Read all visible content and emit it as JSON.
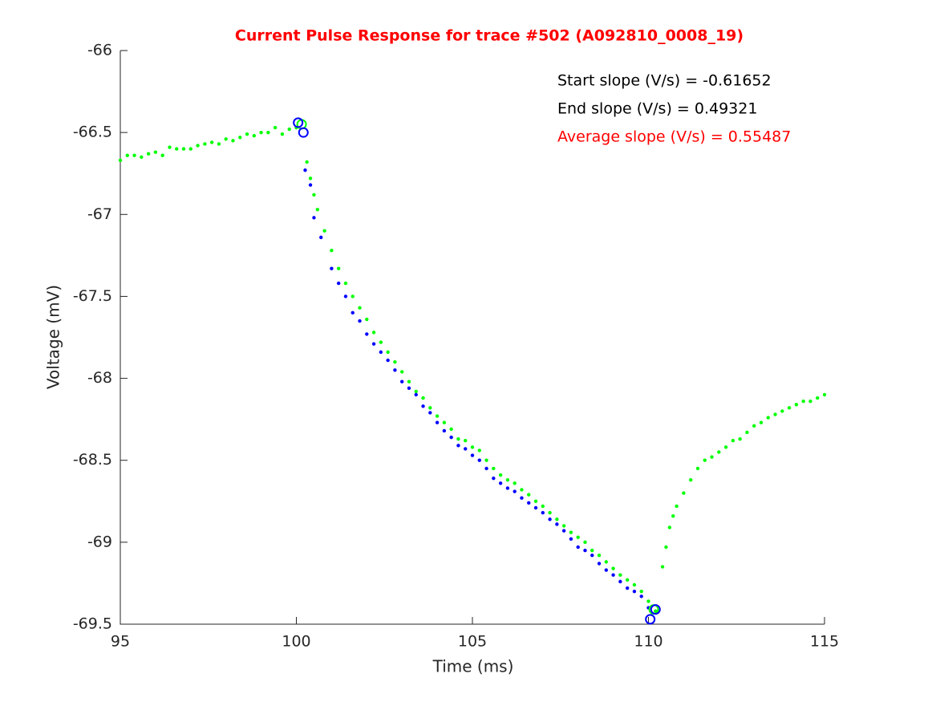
{
  "chart_data": {
    "type": "scatter",
    "title": "Current Pulse Response for trace #502 (A092810_0008_19)",
    "title_color": "#ff0000",
    "xlabel": "Time (ms)",
    "ylabel": "Voltage (mV)",
    "xlim": [
      95,
      115
    ],
    "xticks": [
      95,
      100,
      105,
      110,
      115
    ],
    "ylim": [
      -69.5,
      -66
    ],
    "yticks": [
      -66,
      -66.5,
      -67,
      -67.5,
      -68,
      -68.5,
      -69,
      -69.5
    ],
    "annotations": [
      {
        "text": "Start slope (V/s) = -0.61652",
        "color": "#000000"
      },
      {
        "text": "End slope (V/s) = 0.49321",
        "color": "#000000"
      },
      {
        "text": "Average slope (V/s) = 0.55487",
        "color": "#ff0000"
      }
    ],
    "series": [
      {
        "color": "#00ff00",
        "marker": "dot",
        "x": [
          95.0,
          95.2,
          95.4,
          95.6,
          95.8,
          96.0,
          96.2,
          96.4,
          96.6,
          96.8,
          97.0,
          97.2,
          97.4,
          97.6,
          97.8,
          98.0,
          98.2,
          98.4,
          98.6,
          98.8,
          99.0,
          99.2,
          99.4,
          99.6,
          99.8,
          100.0,
          100.3,
          100.4,
          100.5,
          100.6,
          100.8,
          101.0,
          101.2,
          101.4,
          101.6,
          101.8,
          102.0,
          102.2,
          102.4,
          102.6,
          102.8,
          103.0,
          103.2,
          103.4,
          103.6,
          103.8,
          104.0,
          104.2,
          104.4,
          104.6,
          104.8,
          105.0,
          105.2,
          105.4,
          105.6,
          105.8,
          106.0,
          106.2,
          106.4,
          106.6,
          106.8,
          107.0,
          107.2,
          107.4,
          107.6,
          107.8,
          108.0,
          108.2,
          108.4,
          108.6,
          108.8,
          109.0,
          109.2,
          109.4,
          109.6,
          109.8,
          110.0,
          110.2,
          110.4,
          110.5,
          110.6,
          110.7,
          110.8,
          111.0,
          111.2,
          111.4,
          111.6,
          111.8,
          112.0,
          112.2,
          112.4,
          112.6,
          112.8,
          113.0,
          113.2,
          113.4,
          113.6,
          113.8,
          114.0,
          114.2,
          114.4,
          114.6,
          114.8,
          115.0
        ],
        "values": [
          -66.67,
          -66.64,
          -66.64,
          -66.65,
          -66.63,
          -66.62,
          -66.64,
          -66.59,
          -66.6,
          -66.6,
          -66.6,
          -66.58,
          -66.57,
          -66.56,
          -66.57,
          -66.54,
          -66.55,
          -66.53,
          -66.51,
          -66.52,
          -66.5,
          -66.5,
          -66.47,
          -66.51,
          -66.48,
          -66.47,
          -66.68,
          -66.78,
          -66.88,
          -66.97,
          -67.1,
          -67.22,
          -67.33,
          -67.42,
          -67.5,
          -67.57,
          -67.64,
          -67.72,
          -67.78,
          -67.84,
          -67.9,
          -67.96,
          -68.02,
          -68.08,
          -68.12,
          -68.18,
          -68.23,
          -68.27,
          -68.31,
          -68.37,
          -68.38,
          -68.42,
          -68.44,
          -68.5,
          -68.55,
          -68.59,
          -68.62,
          -68.64,
          -68.68,
          -68.71,
          -68.75,
          -68.78,
          -68.82,
          -68.86,
          -68.9,
          -68.94,
          -68.97,
          -69.0,
          -69.05,
          -69.08,
          -69.12,
          -69.16,
          -69.2,
          -69.23,
          -69.26,
          -69.3,
          -69.36,
          -69.42,
          -69.15,
          -69.03,
          -68.91,
          -68.84,
          -68.78,
          -68.7,
          -68.62,
          -68.55,
          -68.5,
          -68.48,
          -68.45,
          -68.42,
          -68.38,
          -68.37,
          -68.33,
          -68.29,
          -68.27,
          -68.24,
          -68.22,
          -68.2,
          -68.18,
          -68.16,
          -68.14,
          -68.14,
          -68.12,
          -68.1
        ]
      },
      {
        "color": "#0000ff",
        "marker": "dot",
        "x": [
          100.25,
          100.4,
          100.5,
          100.7,
          101.0,
          101.2,
          101.4,
          101.6,
          101.8,
          102.0,
          102.2,
          102.4,
          102.6,
          102.8,
          103.0,
          103.2,
          103.4,
          103.6,
          103.8,
          104.0,
          104.2,
          104.4,
          104.6,
          104.8,
          105.0,
          105.2,
          105.4,
          105.6,
          105.8,
          106.0,
          106.2,
          106.4,
          106.6,
          106.8,
          107.0,
          107.2,
          107.4,
          107.6,
          107.8,
          108.0,
          108.2,
          108.4,
          108.6,
          108.8,
          109.0,
          109.2,
          109.4,
          109.6,
          109.8,
          110.0
        ],
        "values": [
          -66.73,
          -66.82,
          -67.02,
          -67.14,
          -67.33,
          -67.42,
          -67.5,
          -67.6,
          -67.65,
          -67.73,
          -67.79,
          -67.84,
          -67.89,
          -67.95,
          -68.02,
          -68.06,
          -68.1,
          -68.17,
          -68.21,
          -68.27,
          -68.32,
          -68.36,
          -68.41,
          -68.43,
          -68.47,
          -68.5,
          -68.55,
          -68.61,
          -68.64,
          -68.67,
          -68.69,
          -68.73,
          -68.76,
          -68.79,
          -68.82,
          -68.86,
          -68.89,
          -68.93,
          -68.98,
          -69.03,
          -69.05,
          -69.08,
          -69.13,
          -69.17,
          -69.2,
          -69.24,
          -69.28,
          -69.3,
          -69.33,
          -69.4
        ]
      },
      {
        "color": "#00ff00",
        "marker": "circle",
        "x": [
          100.15,
          110.15
        ],
        "values": [
          -66.45,
          -69.41
        ]
      },
      {
        "color": "#0000ff",
        "marker": "circle",
        "x": [
          100.05,
          100.2,
          110.2,
          110.05
        ],
        "values": [
          -66.44,
          -66.5,
          -69.41,
          -69.47
        ]
      }
    ]
  }
}
